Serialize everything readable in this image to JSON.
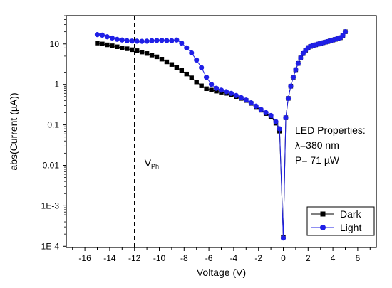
{
  "colors": {
    "dark": "#000000",
    "light": "#1f1fe6"
  },
  "chart_data": {
    "type": "scatter",
    "xlabel": "Voltage (V)",
    "ylabel": "abs(Current (µA))",
    "xlim": [
      -17.5,
      7.5
    ],
    "ylim": [
      0.0001,
      50
    ],
    "yscale": "log",
    "x_ticks": [
      -16,
      -14,
      -12,
      -10,
      -8,
      -6,
      -4,
      -2,
      0,
      2,
      4,
      6
    ],
    "x_tick_labels": [
      "-16",
      "-14",
      "-12",
      "-10",
      "-8",
      "-6",
      "-4",
      "-2",
      "0",
      "2",
      "4",
      "6"
    ],
    "y_ticks": [
      0.0001,
      0.001,
      0.01,
      0.1,
      1,
      10
    ],
    "y_tick_labels": [
      "1E-4",
      "1E-3",
      "0.01",
      "0.1",
      "1",
      "10"
    ],
    "vline": {
      "x": -12,
      "style": "dashed",
      "label_main": "V",
      "label_sub": "Ph"
    },
    "annotation_lines": [
      "LED Properties:",
      "λ=380 nm",
      "P= 71 µW"
    ],
    "legend_position": "bottom-right",
    "grid": false,
    "series": [
      {
        "name": "Dark",
        "marker": "square",
        "x": [
          -15,
          -14.6,
          -14.2,
          -13.8,
          -13.4,
          -13,
          -12.6,
          -12.2,
          -11.8,
          -11.4,
          -11,
          -10.6,
          -10.2,
          -9.8,
          -9.4,
          -9,
          -8.6,
          -8.2,
          -7.8,
          -7.4,
          -7,
          -6.6,
          -6.2,
          -5.8,
          -5.4,
          -5,
          -4.6,
          -4.2,
          -3.8,
          -3.4,
          -3,
          -2.6,
          -2.2,
          -1.8,
          -1.4,
          -1,
          -0.6,
          -0.3,
          0,
          0.2,
          0.4,
          0.6,
          0.8,
          1,
          1.2,
          1.4,
          1.6,
          1.8,
          2,
          2.2,
          2.4,
          2.6,
          2.8,
          3,
          3.2,
          3.4,
          3.6,
          3.8,
          4,
          4.2,
          4.4,
          4.6,
          4.8,
          5
        ],
        "values": [
          10.5,
          10,
          9.5,
          9,
          8.5,
          8,
          7.6,
          7.2,
          6.8,
          6.3,
          5.8,
          5.3,
          4.8,
          4.2,
          3.6,
          3.1,
          2.6,
          2.2,
          1.8,
          1.45,
          1.15,
          0.92,
          0.78,
          0.72,
          0.68,
          0.64,
          0.6,
          0.55,
          0.5,
          0.45,
          0.4,
          0.34,
          0.28,
          0.23,
          0.19,
          0.16,
          0.11,
          0.07,
          0.00017,
          0.15,
          0.45,
          0.9,
          1.5,
          2.3,
          3.3,
          4.5,
          5.8,
          7,
          8.1,
          8.7,
          9.1,
          9.5,
          9.9,
          10.3,
          10.7,
          11.1,
          11.5,
          12,
          12.5,
          13,
          13.5,
          14.2,
          16,
          20
        ]
      },
      {
        "name": "Light",
        "marker": "circle",
        "x": [
          -15,
          -14.6,
          -14.2,
          -13.8,
          -13.4,
          -13,
          -12.6,
          -12.2,
          -11.8,
          -11.4,
          -11,
          -10.6,
          -10.2,
          -9.8,
          -9.4,
          -9,
          -8.6,
          -8.2,
          -7.8,
          -7.4,
          -7,
          -6.6,
          -6.2,
          -5.8,
          -5.4,
          -5,
          -4.6,
          -4.2,
          -3.8,
          -3.4,
          -3,
          -2.6,
          -2.2,
          -1.8,
          -1.4,
          -1,
          -0.6,
          -0.3,
          0,
          0.2,
          0.4,
          0.6,
          0.8,
          1,
          1.2,
          1.4,
          1.6,
          1.8,
          2,
          2.2,
          2.4,
          2.6,
          2.8,
          3,
          3.2,
          3.4,
          3.6,
          3.8,
          4,
          4.2,
          4.4,
          4.6,
          4.8,
          5
        ],
        "values": [
          17,
          16.5,
          15,
          14,
          13,
          12.5,
          12,
          11.8,
          11.7,
          11.6,
          11.7,
          12,
          12.2,
          12.3,
          12.1,
          12,
          12.5,
          10.5,
          8,
          6,
          4,
          2.6,
          1.5,
          1.0,
          0.8,
          0.72,
          0.66,
          0.6,
          0.53,
          0.47,
          0.41,
          0.35,
          0.29,
          0.24,
          0.2,
          0.17,
          0.12,
          0.08,
          0.00016,
          0.15,
          0.45,
          0.9,
          1.5,
          2.3,
          3.3,
          4.5,
          5.8,
          7,
          8.1,
          8.7,
          9.1,
          9.5,
          9.9,
          10.3,
          10.7,
          11.1,
          11.5,
          12,
          12.5,
          13,
          13.5,
          14.2,
          16,
          20
        ]
      }
    ]
  }
}
